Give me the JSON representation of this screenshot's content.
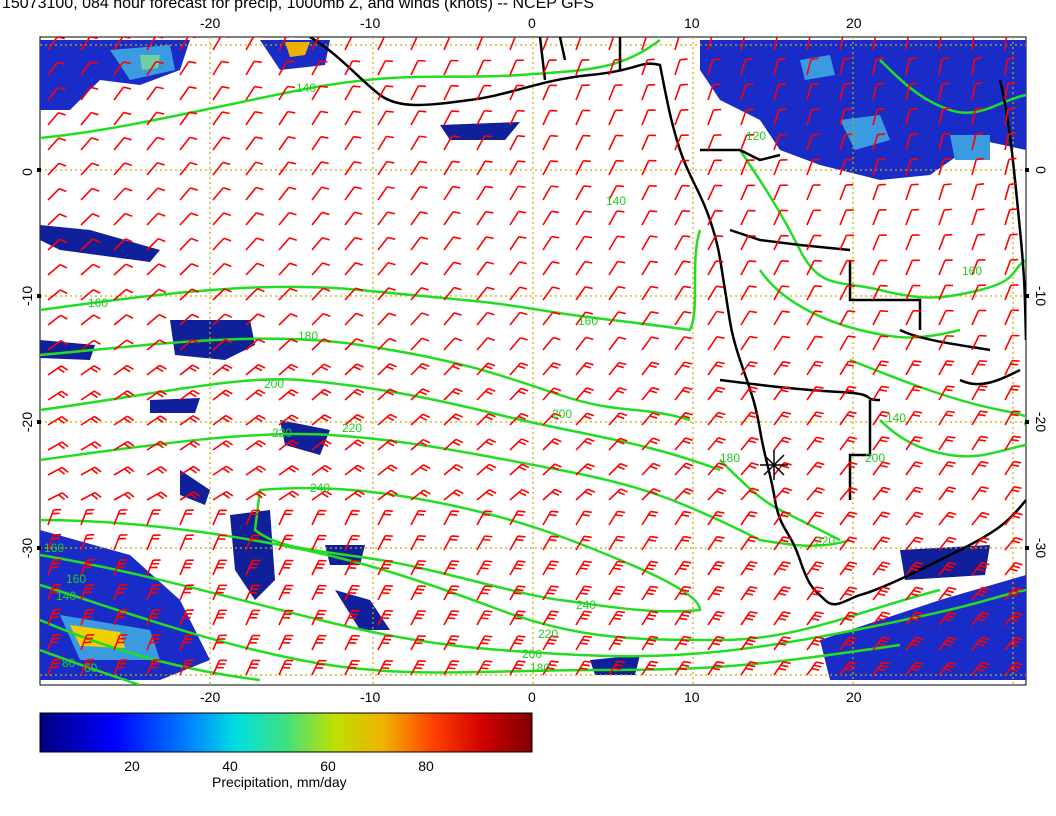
{
  "title": "15073100, 084 hour forecast for precip, 1000mb Z, and winds (knots) -- NCEP GFS",
  "map": {
    "lon_ticks_bottom": [
      "-20",
      "-10",
      "0",
      "10",
      "20"
    ],
    "lon_ticks_top": [
      "-20",
      "-10",
      "0",
      "10",
      "20"
    ],
    "lat_ticks_left": [
      "0",
      "-10",
      "-20",
      "-30"
    ],
    "lat_ticks_right": [
      "0",
      "-10",
      "-20",
      "-30"
    ],
    "contour_labels": [
      "140",
      "140",
      "160",
      "160",
      "180",
      "200",
      "200",
      "220",
      "220",
      "240",
      "240",
      "220",
      "200",
      "180",
      "160",
      "160",
      "140",
      "80",
      "60",
      "140",
      "160",
      "180",
      "200",
      "220",
      "120"
    ],
    "colors": {
      "contour": "#22dd22",
      "wind_barb": "#ff0000",
      "coast": "#000000",
      "grid": "#ccaa00"
    }
  },
  "colorbar": {
    "label": "Precipitation, mm/day",
    "ticks": [
      "20",
      "40",
      "60",
      "80"
    ],
    "range": [
      0,
      100
    ]
  }
}
